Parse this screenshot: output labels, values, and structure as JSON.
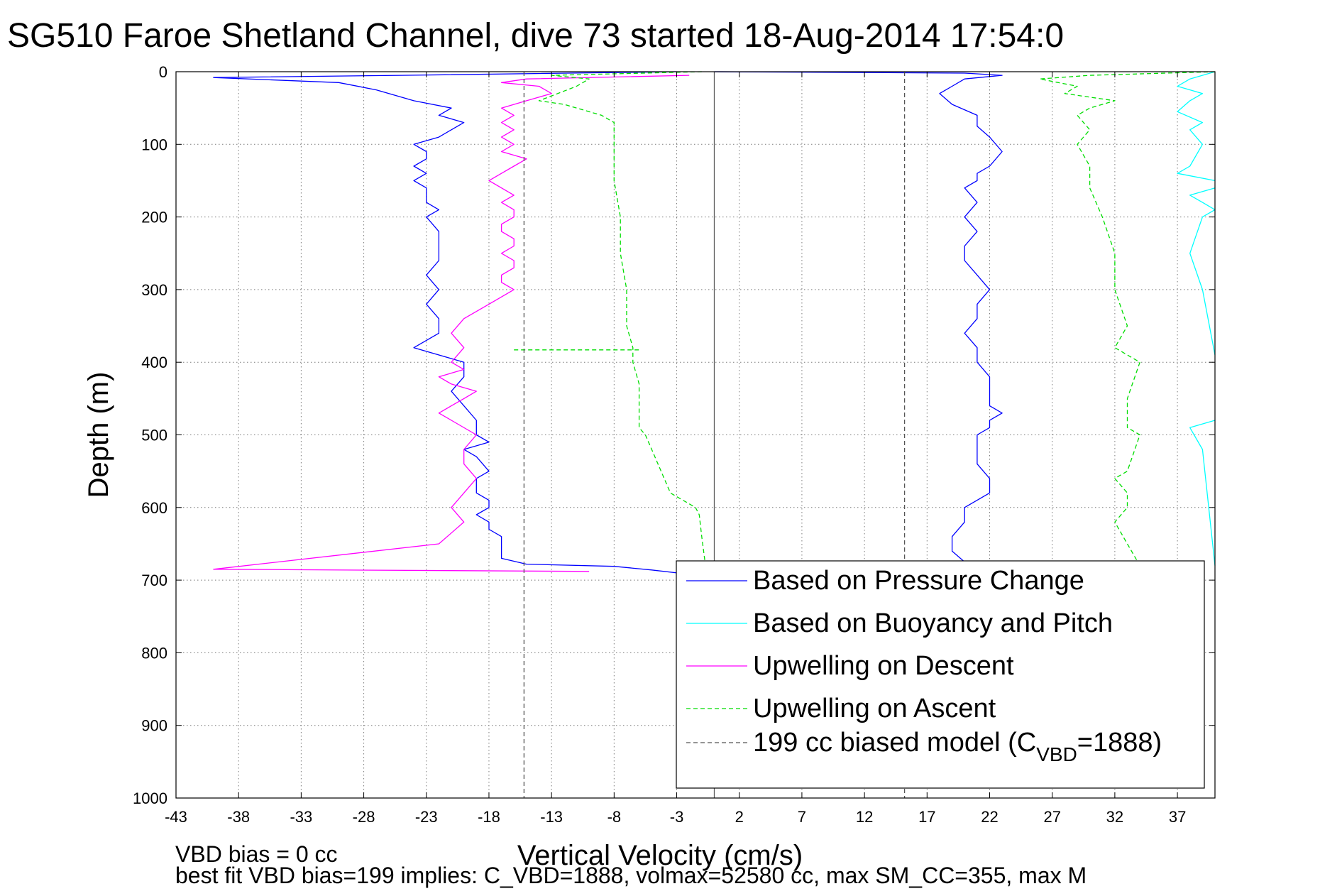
{
  "chart_data": {
    "type": "line",
    "title": "SG510 Faroe Shetland Channel, dive 73 started 18-Aug-2014 17:54:0",
    "xlabel": "Vertical Velocity (cm/s)",
    "ylabel": "Depth (m)",
    "xlim": [
      -43,
      40
    ],
    "ylim": [
      0,
      1000
    ],
    "y_reversed": true,
    "grid": true,
    "xticks": [
      -43,
      -38,
      -33,
      -28,
      -23,
      -18,
      -13,
      -8,
      -3,
      2,
      7,
      12,
      17,
      22,
      27,
      32,
      37
    ],
    "yticks": [
      0,
      100,
      200,
      300,
      400,
      500,
      600,
      700,
      800,
      900,
      1000
    ],
    "legend_position": "bottom-right",
    "series": [
      {
        "name": "Based on Pressure Change",
        "color": "#0000ff",
        "style": "solid",
        "profiles": [
          {
            "x": [
              -3,
              -25,
              -40,
              -30,
              -27,
              -24,
              -21,
              -22,
              -20,
              -21,
              -22,
              -24,
              -23,
              -23,
              -24,
              -23,
              -24,
              -23,
              -23,
              -22,
              -23,
              -22,
              -22,
              -22,
              -23,
              -22,
              -23,
              -22,
              -22,
              -24,
              -20,
              -20,
              -21,
              -20,
              -19,
              -19,
              -18,
              -20,
              -19,
              -18,
              -19,
              -19,
              -18,
              -18,
              -19,
              -18,
              -18,
              -17,
              -17,
              -17,
              -15,
              -8,
              -5,
              -2
            ],
            "y": [
              0,
              5,
              8,
              15,
              25,
              40,
              50,
              60,
              70,
              80,
              90,
              100,
              110,
              120,
              130,
              140,
              150,
              160,
              180,
              190,
              200,
              220,
              240,
              260,
              280,
              300,
              320,
              340,
              360,
              380,
              400,
              420,
              440,
              460,
              480,
              500,
              510,
              520,
              530,
              550,
              560,
              580,
              590,
              600,
              610,
              620,
              630,
              640,
              660,
              670,
              678,
              681,
              686,
              692
            ]
          },
          {
            "x": [
              0,
              20,
              23,
              20,
              19,
              18,
              19,
              21,
              21,
              22,
              23,
              22,
              21,
              21,
              20,
              21,
              20,
              21,
              20,
              20,
              21,
              22,
              21,
              21,
              20,
              21,
              21,
              22,
              22,
              22,
              23,
              22,
              22,
              21,
              21,
              21,
              21,
              21,
              22,
              22,
              20,
              20,
              19,
              19,
              20,
              21
            ],
            "y": [
              0,
              2,
              5,
              10,
              20,
              30,
              45,
              60,
              75,
              90,
              110,
              130,
              140,
              150,
              160,
              180,
              200,
              220,
              240,
              260,
              280,
              300,
              320,
              340,
              360,
              380,
              400,
              420,
              440,
              460,
              470,
              480,
              490,
              500,
              510,
              520,
              530,
              540,
              560,
              580,
              600,
              620,
              640,
              660,
              675,
              688
            ]
          }
        ]
      },
      {
        "name": "Based on Buoyancy and Pitch",
        "color": "#00ffff",
        "style": "solid",
        "profiles": [
          {
            "x": [
              40,
              38,
              37,
              39,
              38,
              37,
              39,
              38,
              39,
              38,
              37,
              40
            ],
            "y": [
              0,
              10,
              20,
              30,
              40,
              55,
              70,
              80,
              100,
              130,
              140,
              150
            ]
          },
          {
            "x": [
              40,
              38,
              39,
              40,
              39,
              38,
              39,
              40
            ],
            "y": [
              160,
              170,
              180,
              190,
              200,
              250,
              300,
              390
            ]
          },
          {
            "x": [
              40,
              38,
              39,
              40
            ],
            "y": [
              480,
              490,
              520,
              680
            ]
          }
        ]
      },
      {
        "name": "Upwelling on Descent",
        "color": "#ff00ff",
        "style": "solid",
        "profiles": [
          {
            "x": [
              -2,
              -15,
              -17,
              -14,
              -13,
              -15,
              -17,
              -16,
              -17,
              -16,
              -17,
              -16,
              -17,
              -15,
              -16,
              -17,
              -18,
              -17,
              -16,
              -17,
              -16,
              -16,
              -17,
              -17,
              -16,
              -16,
              -17,
              -16,
              -16,
              -17,
              -17,
              -16,
              -18,
              -20,
              -21,
              -20,
              -21,
              -20,
              -22,
              -21,
              -19,
              -20,
              -21,
              -22,
              -21,
              -19,
              -20,
              -20,
              -19,
              -20,
              -21,
              -20,
              -22,
              -40,
              -10
            ],
            "y": [
              5,
              10,
              15,
              20,
              30,
              40,
              50,
              60,
              70,
              80,
              90,
              100,
              110,
              120,
              130,
              140,
              150,
              160,
              170,
              180,
              190,
              200,
              210,
              220,
              230,
              240,
              250,
              260,
              270,
              280,
              290,
              300,
              320,
              340,
              360,
              380,
              400,
              410,
              420,
              430,
              440,
              450,
              460,
              470,
              480,
              500,
              520,
              540,
              560,
              580,
              600,
              620,
              650,
              685,
              688
            ]
          }
        ]
      },
      {
        "name": "Upwelling on Ascent",
        "color": "#00dd00",
        "style": "dashed",
        "profiles": [
          {
            "x": [
              -1,
              -13,
              -10,
              -11,
              -14,
              -12,
              -9,
              -8,
              -8,
              -8,
              -7.5,
              -7.5,
              -7,
              -7,
              -6.5,
              -6.5,
              -6,
              -6,
              -6,
              -5.5,
              -5,
              -4.5,
              -4,
              -3.5,
              -2.5,
              -1.5,
              -1.2,
              -1,
              -0.7
            ],
            "y": [
              0,
              5,
              10,
              20,
              40,
              45,
              60,
              70,
              100,
              150,
              200,
              250,
              300,
              350,
              380,
              400,
              430,
              460,
              490,
              500,
              520,
              540,
              560,
              580,
              590,
              600,
              610,
              640,
              680
            ]
          },
          {
            "x": [
              -16,
              -6
            ],
            "y": [
              383,
              383
            ]
          },
          {
            "x": [
              40,
              30,
              26,
              29,
              28,
              32,
              30,
              29,
              30,
              29,
              30,
              30,
              31,
              32,
              32,
              33,
              32,
              34,
              33,
              33,
              34,
              33,
              32,
              33,
              33,
              32,
              33,
              34
            ],
            "y": [
              0,
              5,
              10,
              20,
              30,
              40,
              50,
              60,
              80,
              100,
              130,
              160,
              200,
              250,
              300,
              350,
              380,
              400,
              450,
              490,
              500,
              550,
              560,
              580,
              600,
              620,
              650,
              680
            ]
          }
        ]
      },
      {
        "name": "199 cc biased model (C_VBD=1888)",
        "legend_main": "199 cc biased model (C",
        "legend_sub": "VBD",
        "legend_tail": "=1888)",
        "color": "#555555",
        "style": "dashed",
        "profiles": [
          {
            "x": [
              -15.2,
              -15.2
            ],
            "y": [
              0,
              1000
            ]
          },
          {
            "x": [
              15.2,
              15.2
            ],
            "y": [
              0,
              1000
            ]
          }
        ]
      }
    ],
    "reference_line": {
      "x": 0,
      "color": "#555555",
      "style": "solid"
    },
    "annotations": [
      "VBD bias = 0 cc",
      "best fit VBD bias=199 implies: C_VBD=1888, volmax=52580 cc, max SM_CC=355, max M"
    ]
  }
}
